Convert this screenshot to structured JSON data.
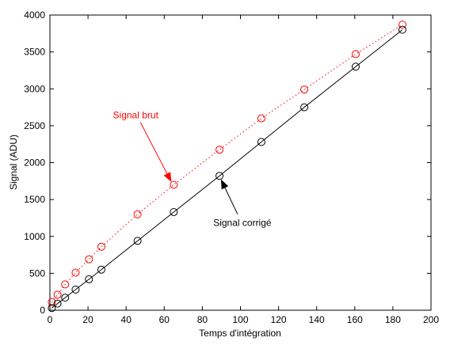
{
  "chart_data": {
    "type": "scatter",
    "title": "",
    "xlabel": "Temps d'intégration",
    "ylabel": "Signal (ADU)",
    "xlim": [
      0,
      200
    ],
    "ylim": [
      0,
      4000
    ],
    "xticks": [
      0,
      20,
      40,
      60,
      80,
      100,
      120,
      140,
      160,
      180,
      200
    ],
    "yticks": [
      0,
      500,
      1000,
      1500,
      2000,
      2500,
      3000,
      3500,
      4000
    ],
    "grid": false,
    "legend": "none",
    "series": [
      {
        "key": "brut",
        "color": "#ff0000",
        "marker": "circle",
        "line_style": "dotted",
        "x": [
          1,
          4,
          8,
          13.5,
          20.5,
          27,
          46,
          65,
          89,
          111,
          133.5,
          160.5,
          185
        ],
        "y": [
          110,
          210,
          350,
          510,
          690,
          860,
          1300,
          1700,
          2175,
          2600,
          2990,
          3470,
          3870
        ]
      },
      {
        "key": "corrige",
        "color": "#000000",
        "marker": "circle",
        "line_style": "solid",
        "x": [
          1,
          4,
          8,
          13.5,
          20.5,
          27,
          46,
          65,
          89,
          111,
          133.5,
          160.5,
          185
        ],
        "y": [
          30,
          90,
          170,
          280,
          420,
          550,
          940,
          1330,
          1820,
          2280,
          2750,
          3300,
          3800
        ]
      }
    ],
    "annotations": [
      {
        "key": "brut",
        "text": "Signal brut",
        "color": "#ff0000",
        "text_at": [
          45,
          2600
        ],
        "arrow_to": [
          63.5,
          1750
        ]
      },
      {
        "key": "corrige",
        "text": "Signal corrigé",
        "color": "#000000",
        "text_at": [
          101,
          1140
        ],
        "arrow_to": [
          90,
          1760
        ]
      }
    ]
  }
}
